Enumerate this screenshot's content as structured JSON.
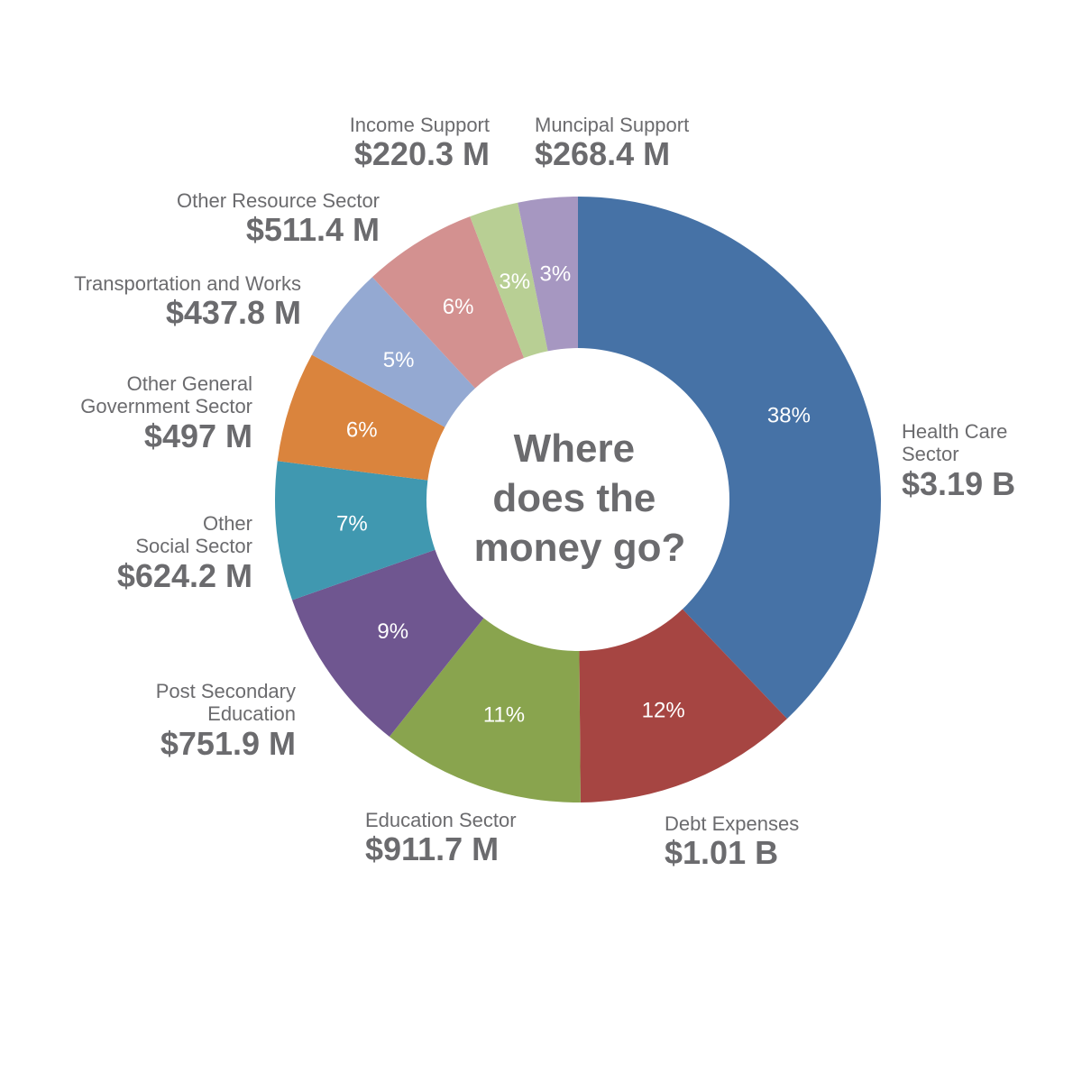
{
  "chart_data": {
    "type": "pie",
    "title": "Where does the money go?",
    "center_lines": [
      "Where",
      "does the",
      "money go?"
    ],
    "slices": [
      {
        "name": "Health Care Sector",
        "name_lines": [
          "Health Care",
          "Sector"
        ],
        "value": 3190,
        "amount_label": "$3.19 B",
        "percent_label": "38%",
        "color": "#4672a6"
      },
      {
        "name": "Debt Expenses",
        "name_lines": [
          "Debt Expenses"
        ],
        "value": 1010,
        "amount_label": "$1.01 B",
        "percent_label": "12%",
        "color": "#a64542"
      },
      {
        "name": "Education Sector",
        "name_lines": [
          "Education Sector"
        ],
        "value": 911.7,
        "amount_label": "$911.7 M",
        "percent_label": "11%",
        "color": "#89a44e"
      },
      {
        "name": "Post Secondary Education",
        "name_lines": [
          "Post Secondary",
          "Education"
        ],
        "value": 751.9,
        "amount_label": "$751.9 M",
        "percent_label": "9%",
        "color": "#6f5690"
      },
      {
        "name": "Other Social Sector",
        "name_lines": [
          "Other",
          "Social Sector"
        ],
        "value": 624.2,
        "amount_label": "$624.2 M",
        "percent_label": "7%",
        "color": "#4098b0"
      },
      {
        "name": "Other General Government Sector",
        "name_lines": [
          "Other General",
          "Government Sector"
        ],
        "value": 497,
        "amount_label": "$497 M",
        "percent_label": "6%",
        "color": "#da843d"
      },
      {
        "name": "Transportation and Works",
        "name_lines": [
          "Transportation and Works"
        ],
        "value": 437.8,
        "amount_label": "$437.8 M",
        "percent_label": "5%",
        "color": "#94a9d2"
      },
      {
        "name": "Other Resource Sector",
        "name_lines": [
          "Other Resource Sector"
        ],
        "value": 511.4,
        "amount_label": "$511.4 M",
        "percent_label": "6%",
        "color": "#d39190"
      },
      {
        "name": "Income Support",
        "name_lines": [
          "Income Support"
        ],
        "value": 220.3,
        "amount_label": "$220.3 M",
        "percent_label": "3%",
        "color": "#b8cf94"
      },
      {
        "name": "Muncipal Support",
        "name_lines": [
          "Muncipal Support"
        ],
        "value": 268.4,
        "amount_label": "$268.4 M",
        "percent_label": "3%",
        "color": "#a697c1"
      }
    ]
  }
}
